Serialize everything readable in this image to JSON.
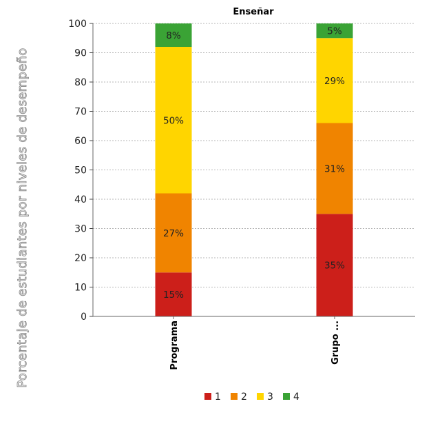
{
  "chart_data": {
    "type": "bar",
    "stacked": true,
    "title": "Enseñar",
    "ylabel": "Porcentaje de estudiantes por niveles de desempeño",
    "xlabel": "",
    "ylim": [
      0,
      100
    ],
    "yticks": [
      0,
      10,
      20,
      30,
      40,
      50,
      60,
      70,
      80,
      90,
      100
    ],
    "grid": true,
    "legend_position": "bottom",
    "categories": [
      "Programa",
      "Grupo ..."
    ],
    "series": [
      {
        "name": "1",
        "color": "#cc1f1a",
        "values": [
          15,
          35
        ],
        "labels": [
          "15%",
          "35%"
        ]
      },
      {
        "name": "2",
        "color": "#f08400",
        "values": [
          27,
          31
        ],
        "labels": [
          "27%",
          "31%"
        ]
      },
      {
        "name": "3",
        "color": "#ffd500",
        "values": [
          50,
          29
        ],
        "labels": [
          "50%",
          "29%"
        ]
      },
      {
        "name": "4",
        "color": "#3aa335",
        "values": [
          8,
          5
        ],
        "labels": [
          "8%",
          "5%"
        ]
      }
    ]
  }
}
